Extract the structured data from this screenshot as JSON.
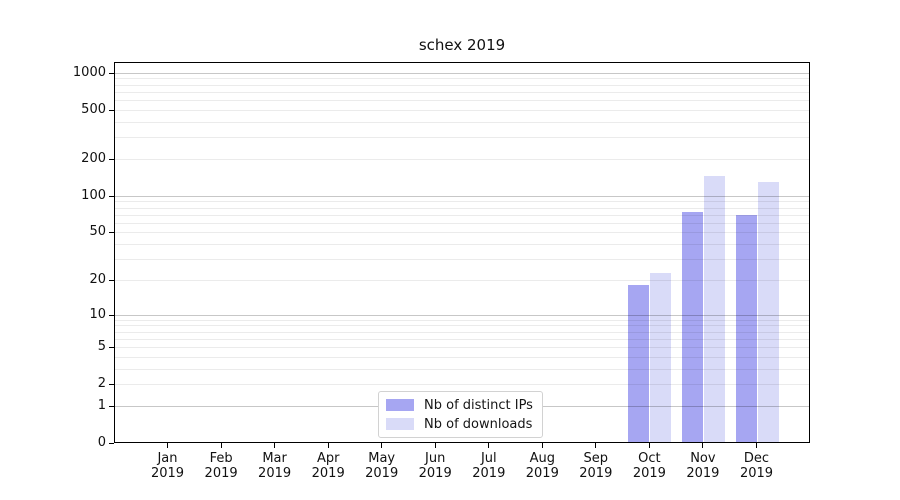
{
  "title": "schex 2019",
  "chart_data": {
    "type": "bar",
    "title": "schex 2019",
    "x_year_label": "2019",
    "categories": [
      "Jan",
      "Feb",
      "Mar",
      "Apr",
      "May",
      "Jun",
      "Jul",
      "Aug",
      "Sep",
      "Oct",
      "Nov",
      "Dec"
    ],
    "series": [
      {
        "name": "Nb of distinct IPs",
        "color": "#a6a6f2",
        "values": [
          0,
          0,
          0,
          0,
          0,
          0,
          0,
          0,
          0,
          18,
          73,
          69
        ]
      },
      {
        "name": "Nb of downloads",
        "color": "#d9dbf8",
        "values": [
          0,
          0,
          0,
          0,
          0,
          0,
          0,
          0,
          0,
          23,
          145,
          130
        ]
      }
    ],
    "y_scale": "log1p",
    "y_ticks": [
      0,
      1,
      2,
      5,
      10,
      20,
      50,
      100,
      200,
      500,
      1000
    ],
    "major_gridlines": [
      1,
      10,
      100,
      1000
    ],
    "ylim": [
      0,
      1220
    ],
    "grid": true,
    "legend_position": "bottom-center"
  }
}
